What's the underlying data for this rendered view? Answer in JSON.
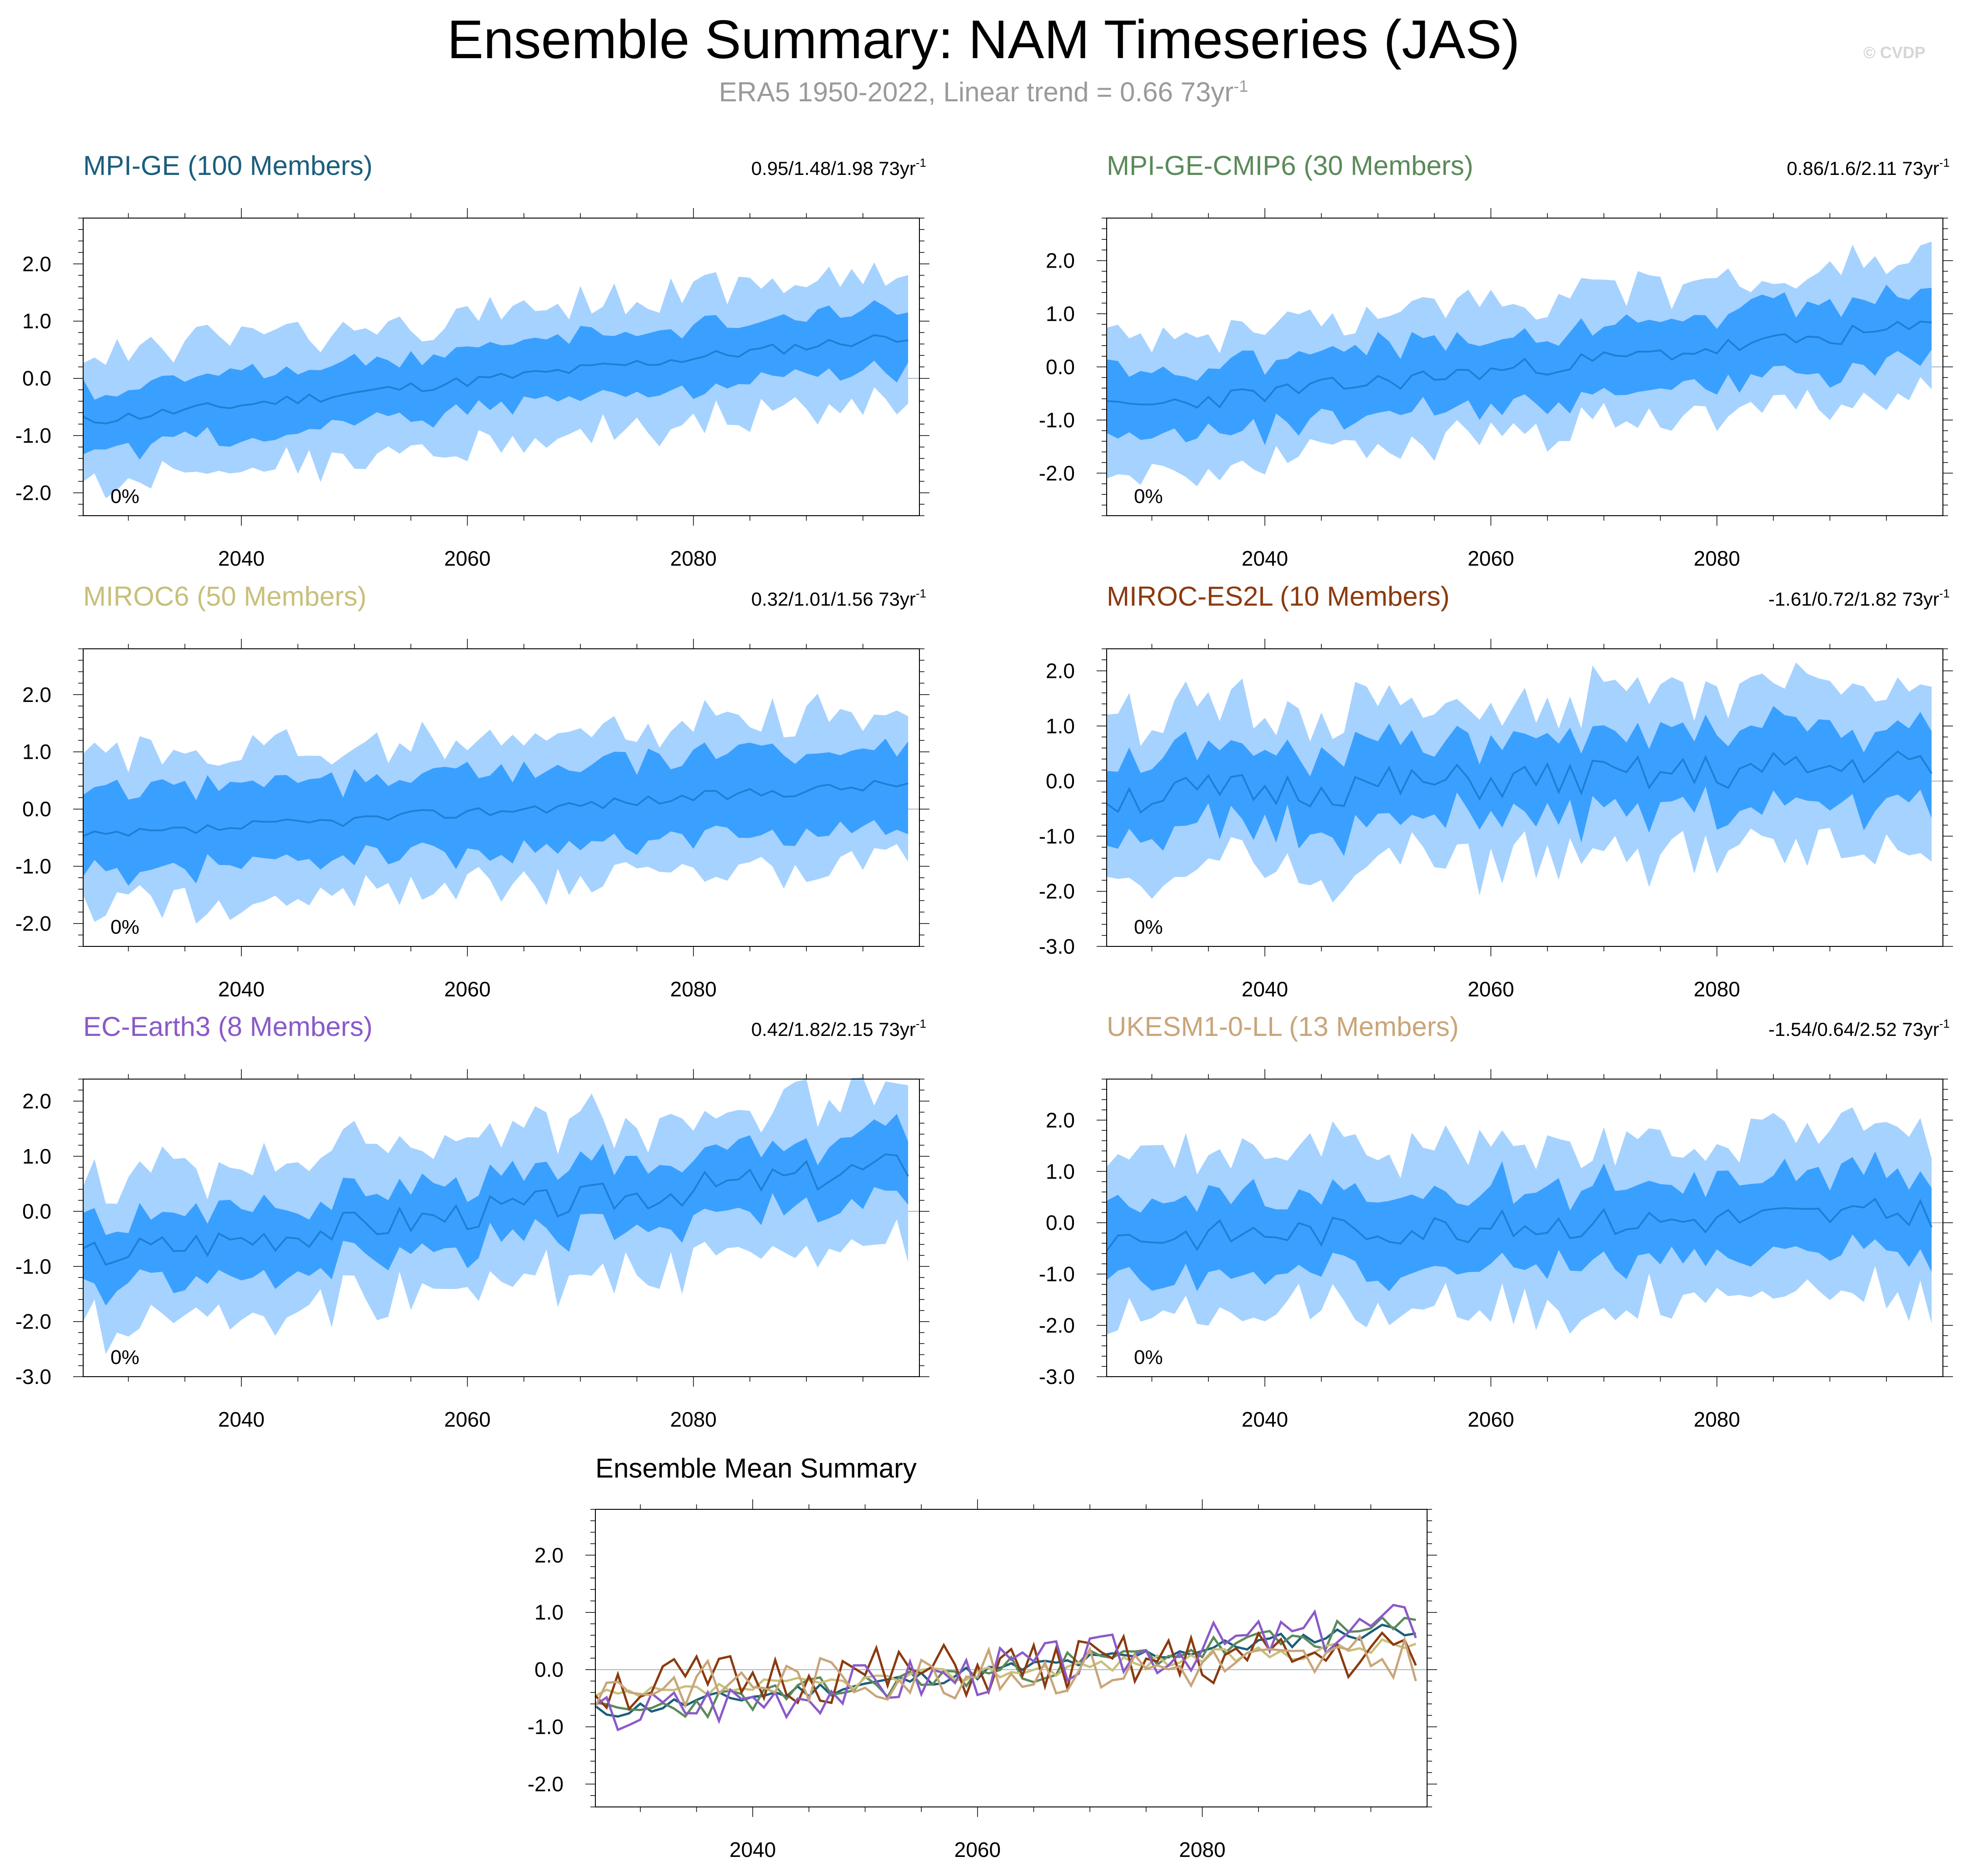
{
  "title": "Ensemble Summary: NAM Timeseries (JAS)",
  "subtitle": {
    "text": "ERA5 1950-2022, Linear trend = 0.66 73yr",
    "superscript": "-1"
  },
  "credit": "© CVDP",
  "colors": {
    "outer_band": "#a6d2ff",
    "inner_band": "#3aa0ff",
    "mean_line": "#1e7fd6",
    "zero_line": "#9db7cc",
    "frame": "#000000"
  },
  "chart_data": [
    {
      "type": "area",
      "title": "MPI-GE (100 Members)",
      "title_color": "#1b5e7d",
      "stat": "0.95/1.48/1.98 73yr",
      "stat_sup": "-1",
      "pct_label": "0%",
      "x_range": [
        2026,
        2100
      ],
      "ylim": [
        -2.4,
        2.8
      ],
      "yticks": [
        2.0,
        1.0,
        0.0,
        -1.0,
        -2.0
      ],
      "ytick_labels": [
        "2.0",
        "1.0",
        "0.0",
        "-1.0",
        "-2.0"
      ],
      "xticks": [
        2040,
        2060,
        2080
      ],
      "start_mean": -0.75,
      "end_mean": 0.75,
      "noise": 0.1,
      "inner_spread": 0.55,
      "outer_spread": 1.15,
      "seed": 11
    },
    {
      "type": "area",
      "title": "MPI-GE-CMIP6 (30 Members)",
      "title_color": "#5a8a5a",
      "stat": "0.86/1.6/2.11 73yr",
      "stat_sup": "-1",
      "pct_label": "0%",
      "x_range": [
        2026,
        2100
      ],
      "ylim": [
        -2.8,
        2.8
      ],
      "yticks": [
        2.0,
        1.0,
        0.0,
        -1.0,
        -2.0
      ],
      "ytick_labels": [
        "2.0",
        "1.0",
        "0.0",
        "-1.0",
        "-2.0"
      ],
      "xticks": [
        2040,
        2060,
        2080
      ],
      "start_mean": -0.8,
      "end_mean": 0.75,
      "noise": 0.18,
      "inner_spread": 0.65,
      "outer_spread": 1.25,
      "seed": 23
    },
    {
      "type": "area",
      "title": "MIROC6 (50 Members)",
      "title_color": "#c8c07a",
      "stat": "0.32/1.01/1.56 73yr",
      "stat_sup": "-1",
      "pct_label": "0%",
      "x_range": [
        2026,
        2100
      ],
      "ylim": [
        -2.4,
        2.8
      ],
      "yticks": [
        2.0,
        1.0,
        0.0,
        -1.0,
        -2.0
      ],
      "ytick_labels": [
        "2.0",
        "1.0",
        "0.0",
        "-1.0",
        "-2.0"
      ],
      "xticks": [
        2040,
        2060,
        2080
      ],
      "start_mean": -0.5,
      "end_mean": 0.45,
      "noise": 0.1,
      "inner_spread": 0.7,
      "outer_spread": 1.3,
      "seed": 37
    },
    {
      "type": "area",
      "title": "MIROC-ES2L (10 Members)",
      "title_color": "#8b3a0f",
      "stat": "-1.61/0.72/1.82 73yr",
      "stat_sup": "-1",
      "pct_label": "0%",
      "x_range": [
        2026,
        2100
      ],
      "ylim": [
        -3.0,
        2.4
      ],
      "yticks": [
        2.0,
        1.0,
        0.0,
        -1.0,
        -2.0,
        -3.0
      ],
      "ytick_labels": [
        "2.0",
        "1.0",
        "0.0",
        "-1.0",
        "-2.0",
        "-3.0"
      ],
      "xticks": [
        2040,
        2060,
        2080
      ],
      "start_mean": -0.3,
      "end_mean": 0.3,
      "noise": 0.35,
      "inner_spread": 0.7,
      "outer_spread": 1.45,
      "seed": 51
    },
    {
      "type": "area",
      "title": "EC-Earth3 (8 Members)",
      "title_color": "#8a5ac8",
      "stat": "0.42/1.82/2.15 73yr",
      "stat_sup": "-1",
      "pct_label": "0%",
      "x_range": [
        2026,
        2100
      ],
      "ylim": [
        -3.0,
        2.4
      ],
      "yticks": [
        2.0,
        1.0,
        0.0,
        -1.0,
        -2.0,
        -3.0
      ],
      "ytick_labels": [
        "2.0",
        "1.0",
        "0.0",
        "-1.0",
        "-2.0",
        "-3.0"
      ],
      "xticks": [
        2040,
        2060,
        2080
      ],
      "start_mean": -0.8,
      "end_mean": 0.85,
      "noise": 0.3,
      "inner_spread": 0.6,
      "outer_spread": 1.35,
      "seed": 67
    },
    {
      "type": "area",
      "title": "UKESM1-0-LL (13 Members)",
      "title_color": "#c9a57a",
      "stat": "-1.54/0.64/2.52 73yr",
      "stat_sup": "-1",
      "pct_label": "0%",
      "x_range": [
        2026,
        2100
      ],
      "ylim": [
        -3.0,
        2.8
      ],
      "yticks": [
        2.0,
        1.0,
        0.0,
        -1.0,
        -2.0,
        -3.0
      ],
      "ytick_labels": [
        "2.0",
        "1.0",
        "0.0",
        "-1.0",
        "-2.0",
        "-3.0"
      ],
      "xticks": [
        2040,
        2060,
        2080
      ],
      "start_mean": -0.3,
      "end_mean": 0.2,
      "noise": 0.3,
      "inner_spread": 0.75,
      "outer_spread": 1.55,
      "seed": 83
    },
    {
      "type": "line",
      "title": "Ensemble Mean Summary",
      "title_color": "#000000",
      "x_range": [
        2026,
        2100
      ],
      "ylim": [
        -2.4,
        2.8
      ],
      "yticks": [
        2.0,
        1.0,
        0.0,
        -1.0,
        -2.0
      ],
      "ytick_labels": [
        "2.0",
        "1.0",
        "0.0",
        "-1.0",
        "-2.0"
      ],
      "xticks": [
        2040,
        2060,
        2080
      ],
      "series": [
        {
          "name": "MPI-GE",
          "color": "#1b5e7d",
          "start_mean": -0.75,
          "end_mean": 0.75,
          "noise": 0.1,
          "seed": 11
        },
        {
          "name": "MPI-GE-CMIP6",
          "color": "#5a8a5a",
          "start_mean": -0.8,
          "end_mean": 0.75,
          "noise": 0.18,
          "seed": 23
        },
        {
          "name": "MIROC6",
          "color": "#c8c07a",
          "start_mean": -0.5,
          "end_mean": 0.45,
          "noise": 0.1,
          "seed": 37
        },
        {
          "name": "MIROC-ES2L",
          "color": "#8b3a0f",
          "start_mean": -0.3,
          "end_mean": 0.3,
          "noise": 0.35,
          "seed": 51
        },
        {
          "name": "EC-Earth3",
          "color": "#8a5ac8",
          "start_mean": -0.8,
          "end_mean": 0.85,
          "noise": 0.3,
          "seed": 67
        },
        {
          "name": "UKESM1-0-LL",
          "color": "#c9a57a",
          "start_mean": -0.3,
          "end_mean": 0.2,
          "noise": 0.3,
          "seed": 83
        }
      ]
    }
  ]
}
